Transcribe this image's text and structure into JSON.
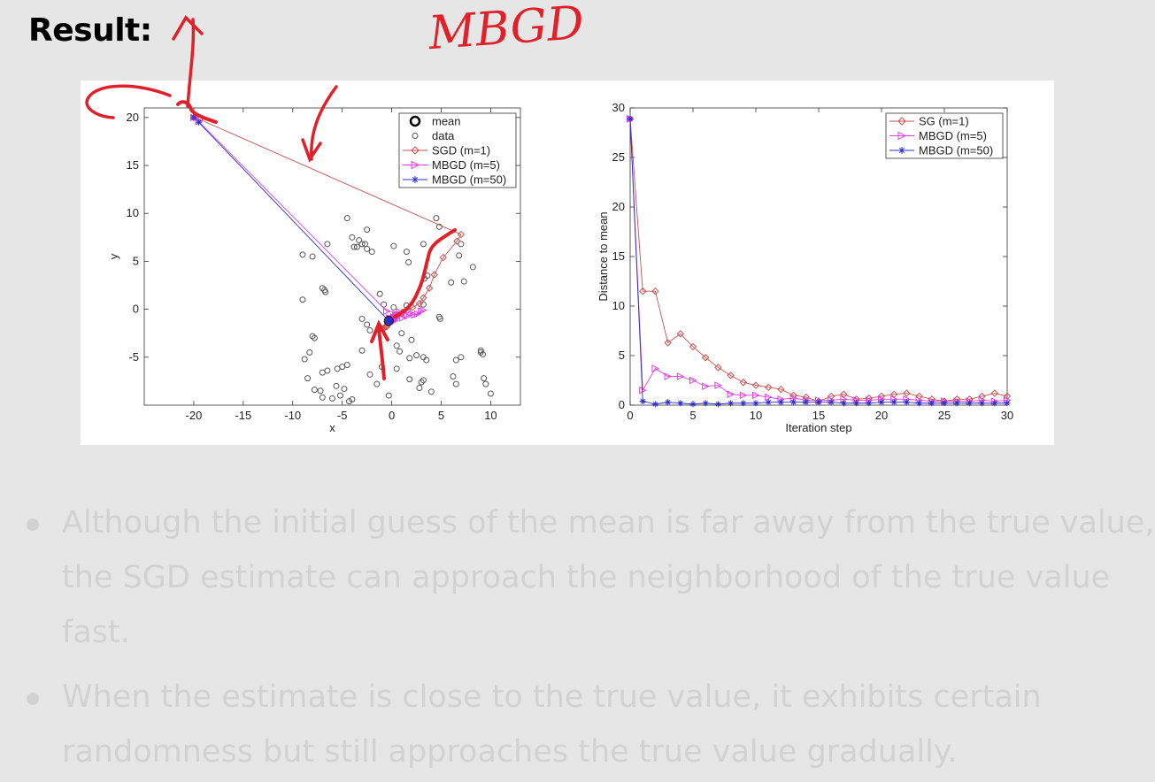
{
  "heading": "Result:",
  "chart_data": [
    {
      "type": "scatter",
      "xlabel": "x",
      "ylabel": "y",
      "xlim": [
        -25,
        13
      ],
      "ylim": [
        -10,
        21
      ],
      "xticks": [
        -20,
        -15,
        -10,
        -5,
        0,
        5,
        10
      ],
      "yticks": [
        -5,
        0,
        5,
        10,
        15,
        20
      ],
      "legend_position": "top-right",
      "legend": [
        "mean",
        "data",
        "SGD (m=1)",
        "MBGD (m=5)",
        "MBGD (m=50)"
      ],
      "mean": [
        -0.3,
        -1.2
      ],
      "data": [
        [
          -4.5,
          9.5
        ],
        [
          -2.5,
          8.3
        ],
        [
          -4.0,
          7.5
        ],
        [
          -3.3,
          7.2
        ],
        [
          -3.0,
          6.8
        ],
        [
          -3.5,
          6.5
        ],
        [
          -2.5,
          6.3
        ],
        [
          -2.0,
          6.0
        ],
        [
          -2.7,
          6.8
        ],
        [
          -3.8,
          6.5
        ],
        [
          -6.5,
          6.8
        ],
        [
          -9.0,
          5.7
        ],
        [
          -8.0,
          5.5
        ],
        [
          0.2,
          6.6
        ],
        [
          1.5,
          6.0
        ],
        [
          3.2,
          6.8
        ],
        [
          4.5,
          9.5
        ],
        [
          4.8,
          8.6
        ],
        [
          7.0,
          6.8
        ],
        [
          6.8,
          5.6
        ],
        [
          8.2,
          4.4
        ],
        [
          1.7,
          4.9
        ],
        [
          3.3,
          3.2
        ],
        [
          3.6,
          3.5
        ],
        [
          6.0,
          2.8
        ],
        [
          7.3,
          2.9
        ],
        [
          -7.0,
          2.2
        ],
        [
          -6.7,
          1.8
        ],
        [
          -6.8,
          2.0
        ],
        [
          -9.0,
          1.0
        ],
        [
          -1.2,
          1.6
        ],
        [
          -0.8,
          0.5
        ],
        [
          0.2,
          0.2
        ],
        [
          1.5,
          0.4
        ],
        [
          3.2,
          0.5
        ],
        [
          4.8,
          -0.8
        ],
        [
          4.9,
          -1.0
        ],
        [
          -3.0,
          -1.0
        ],
        [
          -2.5,
          -1.6
        ],
        [
          -2.2,
          -2.2
        ],
        [
          -1.0,
          -2.0
        ],
        [
          -8.0,
          -2.8
        ],
        [
          -7.8,
          -3.0
        ],
        [
          1.0,
          -2.5
        ],
        [
          2.0,
          -3.2
        ],
        [
          0.5,
          -3.8
        ],
        [
          0.8,
          -4.4
        ],
        [
          -3.0,
          -4.3
        ],
        [
          -8.3,
          -4.5
        ],
        [
          -8.8,
          -5.2
        ],
        [
          -5.5,
          -6.2
        ],
        [
          -4.5,
          -5.8
        ],
        [
          -5.0,
          -6.0
        ],
        [
          -6.5,
          -6.4
        ],
        [
          -7.0,
          -6.6
        ],
        [
          -1.0,
          -6.0
        ],
        [
          0.5,
          -6.2
        ],
        [
          2.5,
          -4.8
        ],
        [
          3.2,
          -5.0
        ],
        [
          3.5,
          -5.3
        ],
        [
          1.8,
          -5.1
        ],
        [
          -2.2,
          -6.8
        ],
        [
          -8.5,
          -7.2
        ],
        [
          -7.8,
          -8.4
        ],
        [
          -7.2,
          -8.5
        ],
        [
          -5.6,
          -8.0
        ],
        [
          -4.8,
          -8.3
        ],
        [
          -5.2,
          -9.0
        ],
        [
          -6.0,
          -9.3
        ],
        [
          -4.0,
          -9.4
        ],
        [
          -7.0,
          -9.2
        ],
        [
          -4.3,
          -9.6
        ],
        [
          -1.5,
          -7.8
        ],
        [
          1.8,
          -7.3
        ],
        [
          3.0,
          -7.6
        ],
        [
          3.2,
          -7.4
        ],
        [
          2.8,
          -8.2
        ],
        [
          4.0,
          -8.6
        ],
        [
          6.2,
          -7.0
        ],
        [
          6.5,
          -7.8
        ],
        [
          7.0,
          -5.0
        ],
        [
          6.5,
          -5.3
        ],
        [
          9.0,
          -4.3
        ],
        [
          9.2,
          -4.7
        ],
        [
          9.0,
          -4.5
        ],
        [
          9.3,
          -7.2
        ],
        [
          9.5,
          -7.8
        ],
        [
          10.0,
          -8.8
        ],
        [
          -0.3,
          -9.0
        ]
      ],
      "series": [
        {
          "name": "SGD (m=1)",
          "color": "#c8504f",
          "marker": "diamond",
          "points": [
            [
              -20,
              20
            ],
            [
              -19.4,
              19.8
            ],
            [
              7.0,
              7.8
            ],
            [
              6.6,
              7.1
            ],
            [
              5.2,
              5.4
            ],
            [
              4.3,
              3.6
            ],
            [
              3.8,
              2.2
            ],
            [
              3.2,
              1.2
            ],
            [
              2.8,
              0.6
            ],
            [
              2.1,
              0.2
            ],
            [
              1.6,
              -0.1
            ],
            [
              1.1,
              -0.3
            ],
            [
              0.7,
              -0.6
            ],
            [
              0.4,
              -0.8
            ],
            [
              0.0,
              -1.0
            ],
            [
              -0.2,
              -1.1
            ],
            [
              0.2,
              -0.9
            ],
            [
              -0.4,
              -1.5
            ],
            [
              0.1,
              -1.2
            ],
            [
              -0.5,
              -1.8
            ],
            [
              0.3,
              -1.0
            ],
            [
              -0.8,
              -2.0
            ],
            [
              -0.2,
              -1.4
            ],
            [
              0.0,
              -1.0
            ],
            [
              0.5,
              -0.6
            ],
            [
              0.2,
              -1.0
            ],
            [
              -0.3,
              -1.4
            ],
            [
              -0.1,
              -0.9
            ],
            [
              -0.6,
              -1.8
            ],
            [
              -0.3,
              -1.2
            ],
            [
              -0.3,
              -1.2
            ]
          ]
        },
        {
          "name": "MBGD (m=5)",
          "color": "#e040e0",
          "marker": "triangle-right",
          "points": [
            [
              -20,
              20
            ],
            [
              -19.5,
              19.6
            ],
            [
              -0.5,
              -0.2
            ],
            [
              0.8,
              -0.3
            ],
            [
              1.8,
              -0.4
            ],
            [
              2.3,
              -0.6
            ],
            [
              3.0,
              -0.2
            ],
            [
              3.2,
              -0.1
            ],
            [
              2.6,
              -0.5
            ],
            [
              1.6,
              -0.7
            ],
            [
              1.1,
              -0.9
            ],
            [
              0.9,
              -0.6
            ],
            [
              0.5,
              -0.7
            ],
            [
              0.3,
              -1.0
            ],
            [
              0.0,
              -1.1
            ],
            [
              0.2,
              -0.8
            ],
            [
              0.5,
              -0.9
            ],
            [
              0.1,
              -1.2
            ],
            [
              0.4,
              -0.6
            ],
            [
              -0.2,
              -1.0
            ],
            [
              0.6,
              -0.7
            ],
            [
              0.3,
              -0.9
            ],
            [
              0.0,
              -1.3
            ],
            [
              -0.3,
              -1.4
            ],
            [
              0.2,
              -1.0
            ],
            [
              0.4,
              -0.9
            ],
            [
              -0.1,
              -1.1
            ],
            [
              0.1,
              -1.0
            ],
            [
              0.3,
              -1.2
            ],
            [
              -0.2,
              -0.9
            ],
            [
              0.0,
              -1.0
            ]
          ]
        },
        {
          "name": "MBGD (m=50)",
          "color": "#2c2ccf",
          "marker": "star",
          "points": [
            [
              -20,
              20
            ],
            [
              -19.5,
              19.5
            ],
            [
              -0.4,
              -1.1
            ],
            [
              -0.2,
              -1.2
            ],
            [
              -0.5,
              -1.3
            ],
            [
              -0.3,
              -1.0
            ],
            [
              -0.1,
              -1.2
            ],
            [
              -0.4,
              -1.1
            ],
            [
              -0.2,
              -1.3
            ],
            [
              -0.3,
              -1.2
            ]
          ]
        }
      ]
    },
    {
      "type": "line",
      "xlabel": "Iteration step",
      "ylabel": "Distance to mean",
      "xlim": [
        0,
        30
      ],
      "ylim": [
        0,
        30
      ],
      "xticks": [
        0,
        5,
        10,
        15,
        20,
        25,
        30
      ],
      "yticks": [
        0,
        5,
        10,
        15,
        20,
        25,
        30
      ],
      "legend_position": "top-right",
      "x": [
        0,
        1,
        2,
        3,
        4,
        5,
        6,
        7,
        8,
        9,
        10,
        11,
        12,
        13,
        14,
        15,
        16,
        17,
        18,
        19,
        20,
        21,
        22,
        23,
        24,
        25,
        26,
        27,
        28,
        29,
        30
      ],
      "series": [
        {
          "name": "SG (m=1)",
          "color": "#c8504f",
          "marker": "diamond",
          "values": [
            28.9,
            11.5,
            11.5,
            6.3,
            7.2,
            5.9,
            4.8,
            3.8,
            3.0,
            2.3,
            2.0,
            1.8,
            1.6,
            1.0,
            0.8,
            0.4,
            0.9,
            1.1,
            0.6,
            0.7,
            0.9,
            1.1,
            1.2,
            0.9,
            0.6,
            0.4,
            0.6,
            0.6,
            0.9,
            1.2,
            0.9
          ]
        },
        {
          "name": "MBGD (m=5)",
          "color": "#e040e0",
          "marker": "triangle-right",
          "values": [
            28.9,
            1.5,
            3.7,
            2.9,
            2.9,
            2.5,
            1.9,
            2.0,
            1.1,
            1.0,
            1.0,
            0.8,
            0.6,
            0.7,
            0.5,
            0.5,
            0.5,
            0.6,
            0.5,
            0.5,
            0.6,
            0.6,
            0.6,
            0.5,
            0.4,
            0.4,
            0.4,
            0.4,
            0.5,
            0.4,
            0.5
          ]
        },
        {
          "name": "MBGD (m=50)",
          "color": "#2c2ccf",
          "marker": "star",
          "values": [
            28.9,
            0.4,
            0.1,
            0.3,
            0.2,
            0.1,
            0.2,
            0.1,
            0.2,
            0.2,
            0.2,
            0.3,
            0.3,
            0.3,
            0.3,
            0.3,
            0.3,
            0.2,
            0.2,
            0.2,
            0.3,
            0.3,
            0.3,
            0.2,
            0.2,
            0.2,
            0.2,
            0.2,
            0.2,
            0.2,
            0.2
          ]
        }
      ]
    }
  ],
  "handwriting": "MBGD",
  "bullets": [
    {
      "lines": [
        "Although the initial guess of the mean is far away from the true value,",
        "the SGD estimate can approach the neighborhood of the true value",
        "fast."
      ]
    },
    {
      "lines": [
        "When the estimate is close to the true value, it exhibits certain",
        "randomness but still approaches the true value gradually."
      ]
    }
  ]
}
